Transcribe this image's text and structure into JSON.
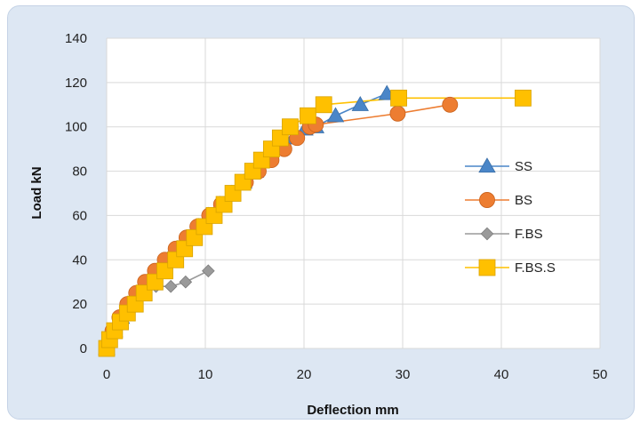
{
  "chart_data": {
    "type": "scatter",
    "title": "",
    "xlabel": "Deflection mm",
    "ylabel": "Load kN",
    "xlim": [
      0,
      50
    ],
    "ylim": [
      0,
      140
    ],
    "xticks": [
      0,
      10,
      20,
      30,
      40,
      50
    ],
    "yticks": [
      0,
      20,
      40,
      60,
      80,
      100,
      120,
      140
    ],
    "grid": true,
    "legend_position": "right",
    "series": [
      {
        "name": "SS",
        "marker": "triangle",
        "color": "#4a86c8",
        "points": [
          [
            0,
            0
          ],
          [
            0.8,
            8
          ],
          [
            1.5,
            14
          ],
          [
            2.3,
            20
          ],
          [
            3.2,
            25
          ],
          [
            4.2,
            30
          ],
          [
            5.2,
            35
          ],
          [
            6.2,
            40
          ],
          [
            7.2,
            45
          ],
          [
            8.3,
            50
          ],
          [
            9.3,
            55
          ],
          [
            10.3,
            60
          ],
          [
            11.5,
            65
          ],
          [
            12.7,
            70
          ],
          [
            13.9,
            75
          ],
          [
            15.1,
            80
          ],
          [
            16.3,
            85
          ],
          [
            17.6,
            90
          ],
          [
            18.9,
            95
          ],
          [
            20.1,
            99
          ],
          [
            21.2,
            100
          ],
          [
            23.2,
            105
          ],
          [
            25.7,
            110
          ],
          [
            28.4,
            115
          ]
        ]
      },
      {
        "name": "BS",
        "marker": "circle",
        "color": "#ed7d31",
        "points": [
          [
            0,
            0
          ],
          [
            0.6,
            8
          ],
          [
            1.3,
            14
          ],
          [
            2.1,
            20
          ],
          [
            3,
            25
          ],
          [
            3.9,
            30
          ],
          [
            4.9,
            35
          ],
          [
            5.9,
            40
          ],
          [
            7,
            45
          ],
          [
            8.1,
            50
          ],
          [
            9.2,
            55
          ],
          [
            10.4,
            60
          ],
          [
            11.6,
            65
          ],
          [
            12.8,
            70
          ],
          [
            14.1,
            75
          ],
          [
            15.4,
            80
          ],
          [
            16.7,
            85
          ],
          [
            18,
            90
          ],
          [
            19.3,
            95
          ],
          [
            20.6,
            100
          ],
          [
            21.2,
            101
          ],
          [
            29.5,
            106
          ],
          [
            34.8,
            110
          ]
        ]
      },
      {
        "name": "F.BS",
        "marker": "diamond",
        "color": "#9a9a9a",
        "points": [
          [
            0,
            0
          ],
          [
            0.5,
            5
          ],
          [
            1.2,
            10
          ],
          [
            2,
            15
          ],
          [
            2.8,
            20
          ],
          [
            3.7,
            25
          ],
          [
            5,
            28
          ],
          [
            6.5,
            28
          ],
          [
            8,
            30
          ],
          [
            10.3,
            35
          ]
        ]
      },
      {
        "name": "F.BS.S",
        "marker": "square",
        "color": "#ffc000",
        "points": [
          [
            0,
            0
          ],
          [
            0.3,
            4
          ],
          [
            0.8,
            8
          ],
          [
            1.4,
            12
          ],
          [
            2.1,
            16
          ],
          [
            2.9,
            20
          ],
          [
            3.8,
            25
          ],
          [
            4.9,
            30
          ],
          [
            5.9,
            35
          ],
          [
            7,
            40
          ],
          [
            7.9,
            45
          ],
          [
            8.9,
            50
          ],
          [
            9.9,
            55
          ],
          [
            10.9,
            60
          ],
          [
            11.9,
            65
          ],
          [
            12.8,
            70
          ],
          [
            13.8,
            75
          ],
          [
            14.8,
            80
          ],
          [
            15.7,
            85
          ],
          [
            16.7,
            90
          ],
          [
            17.6,
            95
          ],
          [
            18.6,
            100
          ],
          [
            20.4,
            105
          ],
          [
            22,
            110
          ],
          [
            29.6,
            113
          ],
          [
            42.2,
            113
          ]
        ]
      }
    ]
  }
}
